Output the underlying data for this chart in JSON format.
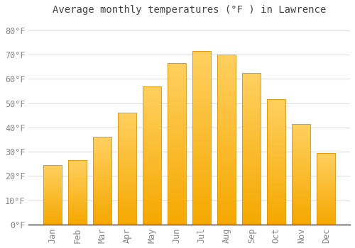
{
  "title": "Average monthly temperatures (°F ) in Lawrence",
  "months": [
    "Jan",
    "Feb",
    "Mar",
    "Apr",
    "May",
    "Jun",
    "Jul",
    "Aug",
    "Sep",
    "Oct",
    "Nov",
    "Dec"
  ],
  "values": [
    24.5,
    26.5,
    36,
    46,
    57,
    66.5,
    71.5,
    70,
    62.5,
    51.5,
    41.5,
    29.5
  ],
  "bar_color_top": "#FFD060",
  "bar_color_bottom": "#F5A800",
  "bar_edge_color": "#E09000",
  "background_color": "#FFFFFF",
  "grid_color": "#DDDDDD",
  "yticks": [
    0,
    10,
    20,
    30,
    40,
    50,
    60,
    70,
    80
  ],
  "ylim": [
    0,
    84
  ],
  "title_fontsize": 10,
  "tick_fontsize": 8.5,
  "tick_color": "#888888",
  "title_color": "#444444"
}
